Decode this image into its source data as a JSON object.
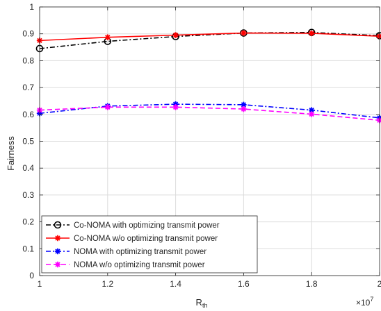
{
  "chart_data": {
    "type": "line",
    "title": "",
    "xlabel_main": "R",
    "xlabel_sub": "th",
    "ylabel": "Fairness",
    "x_exponent_base": "×10",
    "x_exponent_power": "7",
    "x": [
      1.0,
      1.2,
      1.4,
      1.6,
      1.8,
      2.0
    ],
    "x_tick_labels": [
      "1",
      "1.2",
      "1.4",
      "1.6",
      "1.8",
      "2"
    ],
    "xlim": [
      1.0,
      2.0
    ],
    "y_ticks": [
      0,
      0.1,
      0.2,
      0.3,
      0.4,
      0.5,
      0.6,
      0.7,
      0.8,
      0.9,
      1
    ],
    "y_tick_labels": [
      "0",
      "0.1",
      "0.2",
      "0.3",
      "0.4",
      "0.5",
      "0.6",
      "0.7",
      "0.8",
      "0.9",
      "1"
    ],
    "ylim": [
      0,
      1
    ],
    "grid": true,
    "legend_position": "bottom-left",
    "series": [
      {
        "name": "Co-NOMA with optimizing transmit power",
        "color": "#000000",
        "dash": "dash-dot",
        "marker": "circle",
        "values": [
          0.845,
          0.872,
          0.89,
          0.903,
          0.905,
          0.893
        ]
      },
      {
        "name": "Co-NOMA w/o optimizing transmit power",
        "color": "#ff0000",
        "dash": "solid",
        "marker": "asterisk",
        "values": [
          0.875,
          0.887,
          0.895,
          0.903,
          0.902,
          0.891
        ]
      },
      {
        "name": "NOMA with optimizing transmit power",
        "color": "#0000ff",
        "dash": "dash-dot",
        "marker": "asterisk",
        "values": [
          0.604,
          0.631,
          0.638,
          0.636,
          0.616,
          0.587
        ]
      },
      {
        "name": "NOMA w/o optimizing transmit power",
        "color": "#ff00ff",
        "dash": "dashed",
        "marker": "asterisk",
        "values": [
          0.616,
          0.627,
          0.627,
          0.62,
          0.601,
          0.578
        ]
      }
    ]
  }
}
